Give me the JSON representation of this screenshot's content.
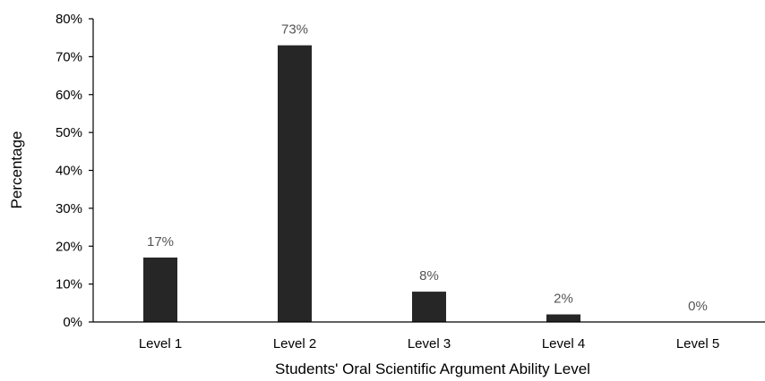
{
  "chart_data": {
    "type": "bar",
    "xlabel": "Students' Oral Scientific Argument Ability Level",
    "ylabel": "Percentage",
    "categories": [
      "Level 1",
      "Level 2",
      "Level 3",
      "Level 4",
      "Level 5"
    ],
    "values": [
      17,
      73,
      8,
      2,
      0
    ],
    "data_labels": [
      "17%",
      "73%",
      "8%",
      "2%",
      "0%"
    ],
    "ylim": [
      0,
      80
    ],
    "yticks": [
      0,
      10,
      20,
      30,
      40,
      50,
      60,
      70,
      80
    ],
    "ytick_labels": [
      "0%",
      "10%",
      "20%",
      "30%",
      "40%",
      "50%",
      "60%",
      "70%",
      "80%"
    ],
    "grid": false,
    "legend": "none",
    "bar_color": "#262626"
  }
}
